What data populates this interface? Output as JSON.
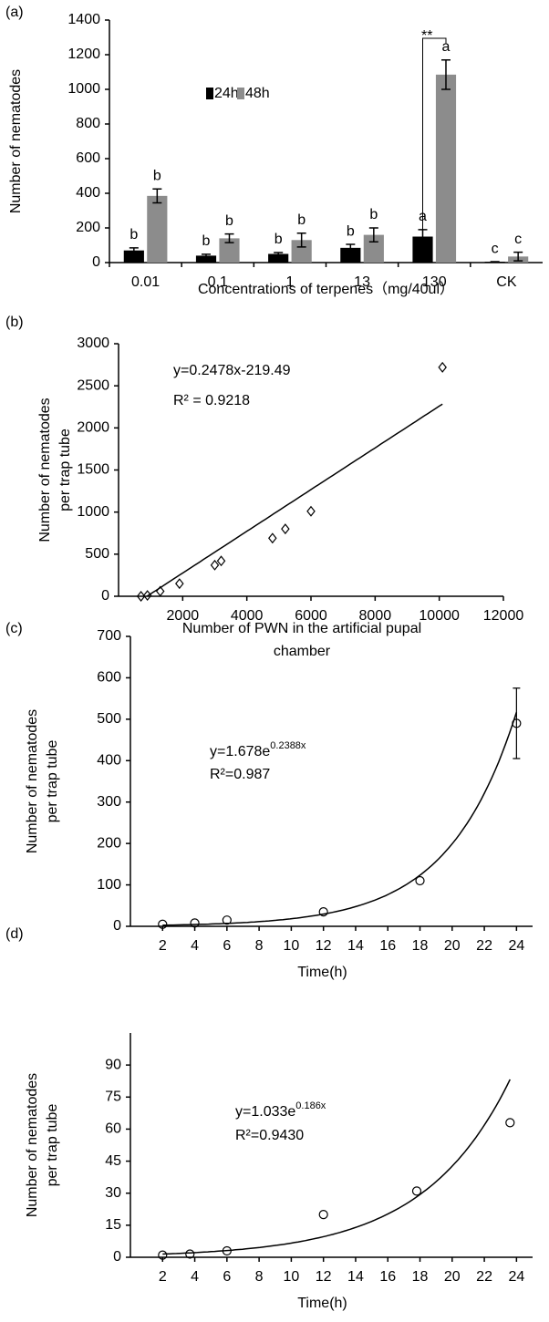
{
  "chart_data": [
    {
      "type": "bar",
      "panel": "(a)",
      "ylabel": "Number of nematodes",
      "xlabel": "Concentrations of terpenes（mg/40ul）",
      "categories": [
        "0.01",
        "0.1",
        "1",
        "13",
        "130",
        "CK"
      ],
      "series": [
        {
          "name": "24h",
          "color": "#000000",
          "values": [
            70,
            40,
            50,
            85,
            150,
            5
          ],
          "errors": [
            15,
            8,
            8,
            20,
            40,
            0
          ],
          "labels": [
            "b",
            "b",
            "b",
            "b",
            "a",
            "c"
          ]
        },
        {
          "name": "48h",
          "color": "#8c8c8c",
          "values": [
            385,
            140,
            130,
            160,
            1085,
            35
          ],
          "errors": [
            40,
            25,
            40,
            40,
            85,
            25
          ],
          "labels": [
            "b",
            "b",
            "b",
            "b",
            "a",
            "c"
          ]
        }
      ],
      "annotation": "**",
      "ylim": [
        0,
        1400
      ],
      "yticks": [
        0,
        200,
        400,
        600,
        800,
        1000,
        1200,
        1400
      ],
      "grid": false
    },
    {
      "type": "scatter",
      "panel": "(b)",
      "ylabel": [
        "Number of nematodes",
        "per trap tube"
      ],
      "xlabel": [
        "Number of PWN in the artificial pupal",
        "chamber"
      ],
      "x": [
        700,
        900,
        1300,
        1900,
        3000,
        3200,
        4800,
        5200,
        6000,
        10100
      ],
      "values": [
        0,
        10,
        60,
        150,
        370,
        420,
        690,
        800,
        1010,
        2720
      ],
      "marker": "diamond",
      "fit": {
        "kind": "linear",
        "slope": 0.2478,
        "intercept": -219.49,
        "equation": "y=0.2478x-219.49",
        "r2": "R² = 0.9218"
      },
      "xlim": [
        0,
        12000
      ],
      "xticks": [
        2000,
        4000,
        6000,
        8000,
        10000,
        12000
      ],
      "ylim": [
        0,
        3000
      ],
      "yticks": [
        0,
        500,
        1000,
        1500,
        2000,
        2500,
        3000
      ],
      "grid": false
    },
    {
      "type": "scatter",
      "panel": "(c)",
      "ylabel": [
        "Number of nematodes",
        "per trap tube"
      ],
      "xlabel": [
        "Time(h)"
      ],
      "x": [
        2,
        4,
        6,
        12,
        18,
        24
      ],
      "values": [
        5,
        8,
        15,
        35,
        110,
        490
      ],
      "errors": [
        null,
        null,
        null,
        null,
        null,
        85
      ],
      "marker": "circle",
      "fit": {
        "kind": "exponential",
        "a": 1.678,
        "b": 0.2388,
        "equation": "y=1.678e",
        "exponent": "0.2388x",
        "r2": "R²=0.987"
      },
      "xlim": [
        0,
        25
      ],
      "xticks": [
        2,
        4,
        6,
        8,
        10,
        12,
        14,
        16,
        18,
        20,
        22,
        24
      ],
      "ylim": [
        0,
        700
      ],
      "yticks": [
        0,
        100,
        200,
        300,
        400,
        500,
        600,
        700
      ],
      "grid": false
    },
    {
      "type": "scatter",
      "panel": "(d)",
      "ylabel": [
        "Number of nematodes",
        "per trap tube"
      ],
      "xlabel": [
        "Time(h)"
      ],
      "x": [
        2,
        3.7,
        6,
        12,
        17.8,
        23.6
      ],
      "values": [
        1,
        1.5,
        3,
        20,
        31,
        63
      ],
      "marker": "circle",
      "fit": {
        "kind": "exponential",
        "a": 1.033,
        "b": 0.186,
        "equation": "y=1.033e",
        "exponent": "0.186x",
        "r2": "R²=0.9430"
      },
      "xlim": [
        0,
        25
      ],
      "xticks": [
        2,
        4,
        6,
        8,
        10,
        12,
        14,
        16,
        18,
        20,
        22,
        24
      ],
      "ylim": [
        0,
        105
      ],
      "yticks": [
        0,
        15,
        30,
        45,
        60,
        75,
        90
      ],
      "grid": false
    }
  ]
}
